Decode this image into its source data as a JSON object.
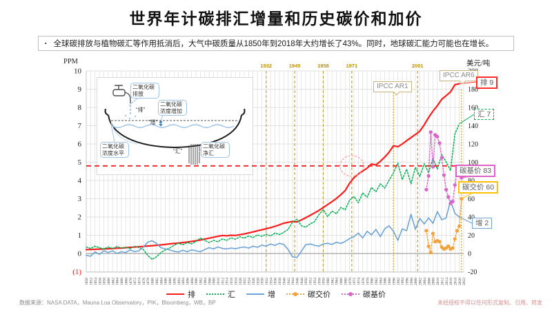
{
  "title": "世界年计碳排汇增量和历史碳价和加价",
  "subtitle": {
    "bullet": "▪",
    "text": "全球碳排放与植物碳汇等作用抵消后，大气中碳质量从1850年到2018年大约增长了43%。同时，地球碳汇能力可能也在增长。"
  },
  "inset": {
    "emission": "二氧化碳排放",
    "increase": "二氧化碳浓度增加",
    "level": "二氧化碳浓度水平",
    "sink": "二氧化碳净汇",
    "tag_emit": "“排”",
    "tag_inc": "“增”",
    "tag_sink": "“汇”"
  },
  "annotations": {
    "ipcc_ar1": "IPCC AR1",
    "ipcc_ar6": "IPCC AR6",
    "emission": "排 9",
    "sink": "汇 7",
    "increase": "增 2",
    "base_price": "碳基价 83",
    "trade_price": "碳交价 60"
  },
  "legend": [
    "排",
    "汇",
    "增",
    "碳交价",
    "碳基价"
  ],
  "footer": {
    "source": "数据来源：NASA DATA，Mauna Loa Observatory，PIK，Bloomberg，WB，BP",
    "disclaimer": "未经授权不得以任何形式复制、引用、转发"
  },
  "chart_data": {
    "type": "line",
    "title": "世界年计碳排汇增量和历史碳价和加价",
    "left_axis": {
      "title": "PPM",
      "min": -1,
      "max": 10,
      "tick_values": [
        10,
        9,
        8,
        7,
        6,
        5,
        4,
        3,
        2,
        1,
        0,
        -1
      ],
      "tick_labels": [
        "10",
        "9",
        "8",
        "7",
        "6",
        "5",
        "4",
        "3",
        "2",
        "1",
        "0",
        "(1)"
      ]
    },
    "right_axis": {
      "title": "美元/吨",
      "min": -20,
      "max": 200,
      "tick_step": 20
    },
    "x_axis": {
      "start": 1850,
      "end": 2022,
      "step": 2
    },
    "reference_line": {
      "axis": "left",
      "value": 4.8,
      "color": "#ff1a1a",
      "style": "dashed"
    },
    "highlight_ellipse": {
      "year": 1971,
      "value": 4.8
    },
    "event_lines": [
      {
        "year": 1932,
        "label": "1932",
        "style": "dashed"
      },
      {
        "year": 1945,
        "label": "1945",
        "style": "dashed"
      },
      {
        "year": 1958,
        "label": "1958",
        "style": "dashed"
      },
      {
        "year": 1971,
        "label": "1971",
        "style": "dashed"
      },
      {
        "year": 2001,
        "label": "2001",
        "style": "dashed"
      },
      {
        "year": 1990,
        "label": "IPCC AR1",
        "style": "dotted"
      },
      {
        "year": 2021,
        "label": "IPCC AR6",
        "style": "dotted"
      }
    ],
    "series": [
      {
        "name": "排",
        "axis": "left",
        "color": "#ff1a1a",
        "style": "solid",
        "width": 2.2,
        "start": 1850,
        "step": 2,
        "values": [
          0.21,
          0.22,
          0.23,
          0.24,
          0.25,
          0.26,
          0.27,
          0.29,
          0.3,
          0.32,
          0.34,
          0.35,
          0.37,
          0.39,
          0.41,
          0.43,
          0.45,
          0.47,
          0.5,
          0.53,
          0.55,
          0.57,
          0.6,
          0.63,
          0.66,
          0.7,
          0.74,
          0.79,
          0.84,
          0.89,
          0.94,
          0.99,
          0.97,
          1.0,
          0.99,
          1.03,
          1.07,
          1.13,
          1.18,
          1.25,
          1.3,
          1.36,
          1.42,
          1.49,
          1.57,
          1.66,
          1.71,
          1.76,
          1.73,
          1.84,
          1.96,
          2.09,
          2.22,
          2.36,
          2.52,
          2.68,
          2.84,
          3.02,
          3.22,
          3.45,
          3.85,
          4.15,
          4.35,
          4.52,
          4.68,
          4.9,
          4.85,
          5.05,
          5.28,
          5.55,
          5.9,
          5.85,
          6.0,
          6.18,
          6.35,
          6.52,
          6.7,
          7.05,
          7.45,
          7.8,
          8.1,
          8.45,
          8.65,
          8.85,
          9.25,
          9.3
        ]
      },
      {
        "name": "汇",
        "axis": "left",
        "color": "#00b050",
        "style": "dotted",
        "width": 1.5,
        "start": 1850,
        "step": 2,
        "values": [
          0.35,
          0.28,
          0.4,
          0.32,
          0.24,
          0.36,
          0.27,
          0.38,
          0.3,
          0.34,
          0.27,
          0.4,
          0.33,
          0.22,
          -0.1,
          -0.32,
          -0.18,
          0.05,
          0.2,
          0.3,
          0.45,
          0.56,
          0.48,
          0.6,
          0.53,
          0.66,
          0.85,
          0.72,
          0.6,
          0.72,
          0.64,
          0.8,
          0.72,
          0.86,
          0.78,
          0.92,
          0.84,
          0.96,
          0.88,
          1.02,
          0.94,
          1.06,
          0.96,
          1.12,
          1.04,
          1.16,
          1.32,
          1.72,
          1.88,
          1.52,
          1.44,
          1.62,
          1.74,
          2.12,
          2.42,
          2.02,
          2.32,
          2.18,
          2.52,
          2.4,
          2.92,
          3.12,
          2.78,
          3.32,
          3.08,
          3.62,
          3.38,
          3.82,
          3.58,
          4.02,
          4.42,
          4.95,
          4.05,
          4.62,
          3.82,
          4.72,
          4.22,
          4.92,
          4.42,
          5.22,
          4.62,
          5.42,
          5.02,
          4.55,
          6.55,
          7.1
        ]
      },
      {
        "name": "增",
        "axis": "left",
        "color": "#6ba3d6",
        "style": "solid",
        "width": 1.6,
        "start": 1850,
        "step": 2,
        "values": [
          -0.1,
          -0.15,
          0.1,
          -0.05,
          0.15,
          0.05,
          0.15,
          0.0,
          0.1,
          0.05,
          0.2,
          0.1,
          0.15,
          0.35,
          0.62,
          0.7,
          0.55,
          0.32,
          0.25,
          0.2,
          0.12,
          0.08,
          0.18,
          0.1,
          0.2,
          0.15,
          0.1,
          0.22,
          0.32,
          0.25,
          0.36,
          0.28,
          0.25,
          0.3,
          0.26,
          0.32,
          0.36,
          0.3,
          0.4,
          0.34,
          0.46,
          0.4,
          0.52,
          0.44,
          0.56,
          0.5,
          0.22,
          -0.18,
          -0.22,
          0.12,
          0.48,
          0.52,
          0.45,
          0.4,
          0.52,
          0.56,
          0.5,
          0.62,
          0.55,
          0.66,
          0.82,
          0.92,
          1.12,
          0.85,
          1.22,
          1.02,
          1.32,
          0.92,
          1.35,
          1.52,
          1.22,
          0.72,
          1.35,
          1.25,
          2.15,
          1.32,
          1.92,
          1.62,
          1.95,
          1.65,
          2.3,
          1.85,
          1.95,
          2.9,
          2.2,
          2.0
        ]
      },
      {
        "name": "碳交价",
        "axis": "right",
        "color": "#f2a23c",
        "style": "dotted",
        "width": 1.4,
        "markers": true,
        "start": 2005,
        "step": 1,
        "values": [
          25,
          8,
          1,
          22,
          13,
          14,
          13,
          7,
          5,
          6,
          8,
          5,
          6,
          16,
          25,
          30,
          60
        ]
      },
      {
        "name": "碳基价",
        "axis": "right",
        "color": "#d667c9",
        "style": "dotted",
        "width": 1.4,
        "markers": true,
        "start": 2005,
        "step": 1,
        "values": [
          70,
          85,
          133,
          95,
          130,
          128,
          121,
          105,
          86,
          70,
          62,
          55,
          57,
          75,
          90,
          95,
          83
        ]
      }
    ]
  }
}
